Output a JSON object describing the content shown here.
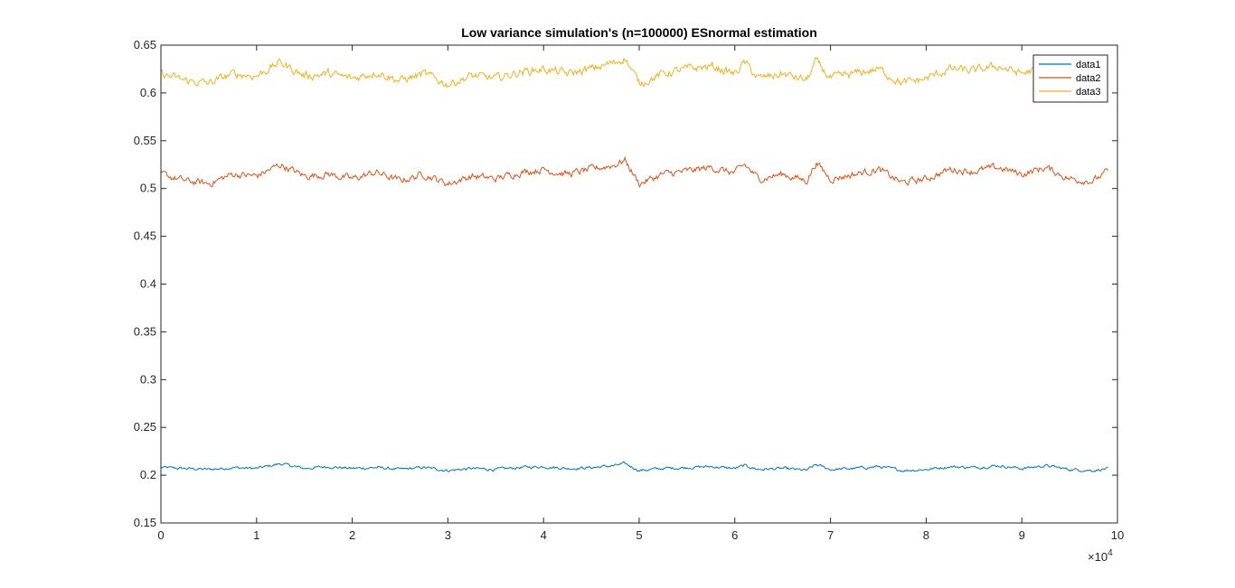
{
  "chart_data": {
    "type": "line",
    "title": "Low variance simulation's (n=100000) ESnormal estimation",
    "xlabel": "",
    "ylabel": "",
    "xlim": [
      0,
      100000
    ],
    "ylim": [
      0.15,
      0.65
    ],
    "x_ticks": [
      0,
      10000,
      20000,
      30000,
      40000,
      50000,
      60000,
      70000,
      80000,
      90000,
      100000
    ],
    "x_tick_labels": [
      "0",
      "1",
      "2",
      "3",
      "4",
      "5",
      "6",
      "7",
      "8",
      "9",
      "10"
    ],
    "x_exponent_label": "×10",
    "x_exponent_power": "4",
    "y_ticks": [
      0.15,
      0.2,
      0.25,
      0.3,
      0.35,
      0.4,
      0.45,
      0.5,
      0.55,
      0.6,
      0.65
    ],
    "y_tick_labels": [
      "0.15",
      "0.2",
      "0.25",
      "0.3",
      "0.35",
      "0.4",
      "0.45",
      "0.5",
      "0.55",
      "0.6",
      "0.65"
    ],
    "grid": false,
    "legend_position": "top-right",
    "x": [
      0,
      2500,
      5000,
      7500,
      10000,
      12500,
      15000,
      17500,
      20000,
      22500,
      25000,
      27500,
      30000,
      32500,
      35000,
      37500,
      40000,
      42500,
      45000,
      47500,
      48500,
      50000,
      52500,
      55000,
      57500,
      60000,
      61000,
      62500,
      65000,
      67500,
      68500,
      70000,
      72500,
      75000,
      77500,
      80000,
      82500,
      85000,
      87500,
      90000,
      92500,
      95000,
      97500,
      99000
    ],
    "series": [
      {
        "name": "data1",
        "color": "#0072BD",
        "values": [
          0.208,
          0.207,
          0.206,
          0.208,
          0.207,
          0.212,
          0.207,
          0.209,
          0.207,
          0.208,
          0.206,
          0.208,
          0.205,
          0.207,
          0.206,
          0.208,
          0.209,
          0.207,
          0.208,
          0.21,
          0.212,
          0.205,
          0.207,
          0.208,
          0.209,
          0.207,
          0.21,
          0.206,
          0.207,
          0.205,
          0.211,
          0.206,
          0.207,
          0.209,
          0.205,
          0.206,
          0.209,
          0.208,
          0.21,
          0.207,
          0.21,
          0.206,
          0.205,
          0.207
        ]
      },
      {
        "name": "data2",
        "color": "#D95319",
        "values": [
          0.515,
          0.508,
          0.505,
          0.515,
          0.513,
          0.525,
          0.513,
          0.515,
          0.51,
          0.517,
          0.508,
          0.515,
          0.505,
          0.513,
          0.51,
          0.517,
          0.52,
          0.515,
          0.52,
          0.525,
          0.53,
          0.505,
          0.515,
          0.518,
          0.522,
          0.516,
          0.525,
          0.51,
          0.515,
          0.508,
          0.527,
          0.51,
          0.515,
          0.52,
          0.506,
          0.51,
          0.52,
          0.518,
          0.522,
          0.515,
          0.522,
          0.51,
          0.508,
          0.518
        ]
      },
      {
        "name": "data3",
        "color": "#EDB120",
        "values": [
          0.62,
          0.613,
          0.61,
          0.62,
          0.618,
          0.632,
          0.618,
          0.62,
          0.615,
          0.622,
          0.613,
          0.62,
          0.609,
          0.618,
          0.615,
          0.622,
          0.625,
          0.62,
          0.625,
          0.632,
          0.637,
          0.61,
          0.62,
          0.625,
          0.628,
          0.62,
          0.632,
          0.615,
          0.62,
          0.613,
          0.633,
          0.615,
          0.62,
          0.625,
          0.61,
          0.615,
          0.625,
          0.623,
          0.628,
          0.62,
          0.628,
          0.615,
          0.613,
          0.623
        ]
      }
    ]
  }
}
